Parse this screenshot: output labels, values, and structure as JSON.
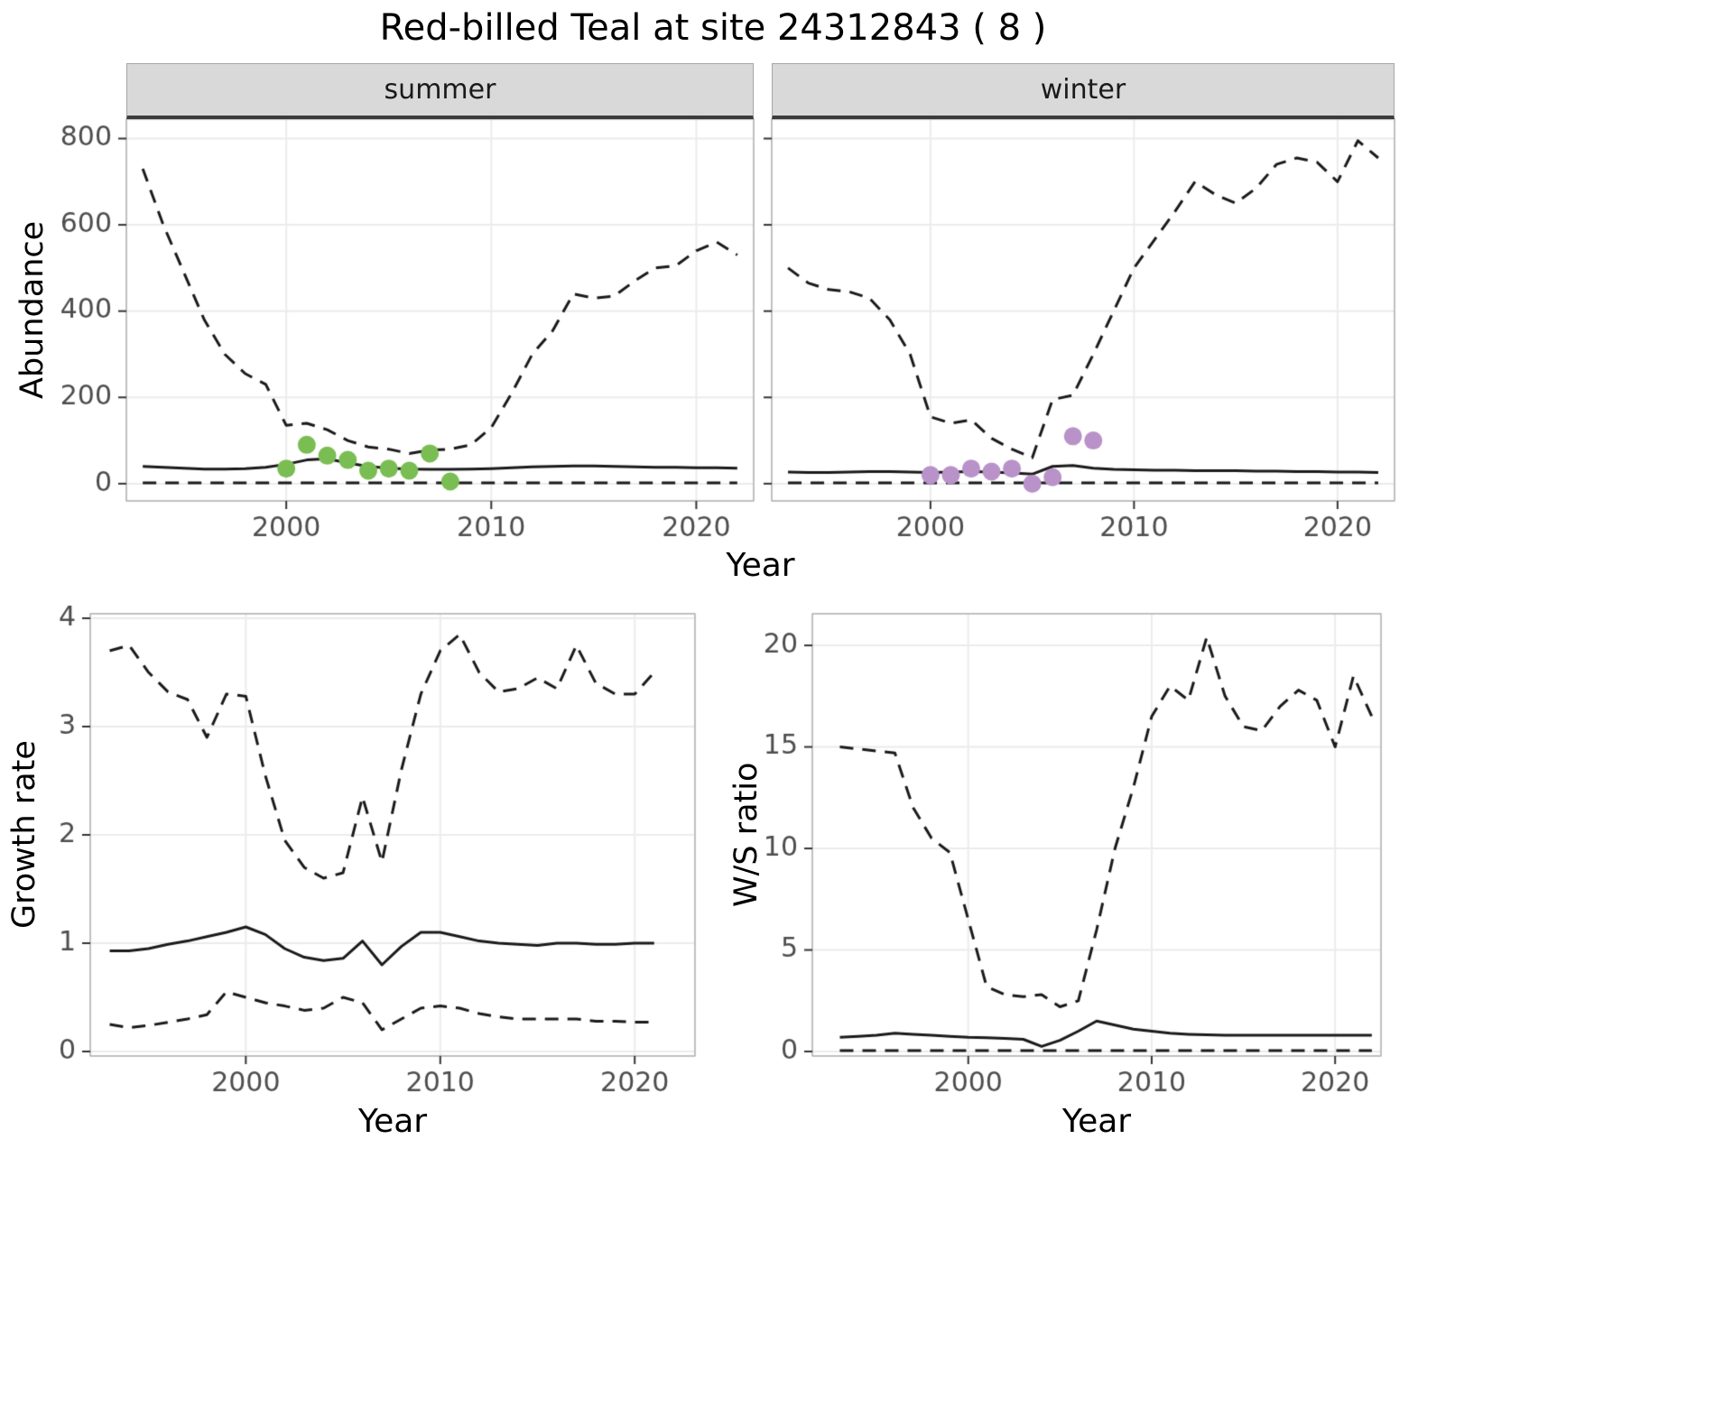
{
  "title": "Red-billed Teal at site 24312843 ( 8 )",
  "point_colors": {
    "summer": "#7abd53",
    "winter": "#b892c9"
  },
  "line_color": "#1a1a1a",
  "strip_background": "#d9d9d9",
  "chart_data": [
    {
      "id": "abundance_summer",
      "type": "line",
      "facet_label": "summer",
      "ylabel": "Abundance",
      "xlabel": "Year",
      "xlim": [
        1992.2,
        2022.8
      ],
      "ylim": [
        -40,
        845
      ],
      "xticks": [
        2000,
        2010,
        2020
      ],
      "yticks": [
        0,
        200,
        400,
        600,
        800
      ],
      "grid": true,
      "legend": "none",
      "x": [
        1993,
        1994,
        1995,
        1996,
        1997,
        1998,
        1999,
        2000,
        2001,
        2002,
        2003,
        2004,
        2005,
        2006,
        2007,
        2008,
        2009,
        2010,
        2011,
        2012,
        2013,
        2014,
        2015,
        2016,
        2017,
        2018,
        2019,
        2020,
        2021,
        2022
      ],
      "series": [
        {
          "name": "upper_ci",
          "style": "dashed",
          "values": [
            730,
            600,
            490,
            380,
            300,
            255,
            230,
            135,
            140,
            125,
            100,
            85,
            80,
            70,
            78,
            80,
            90,
            130,
            210,
            300,
            355,
            440,
            430,
            435,
            470,
            500,
            505,
            540,
            560,
            530
          ]
        },
        {
          "name": "median",
          "style": "solid",
          "values": [
            40,
            38,
            36,
            34,
            34,
            35,
            38,
            45,
            55,
            58,
            48,
            40,
            36,
            34,
            33,
            33,
            34,
            35,
            37,
            39,
            40,
            41,
            41,
            40,
            39,
            38,
            38,
            37,
            37,
            36
          ]
        },
        {
          "name": "lower_ci",
          "style": "dashed",
          "values": [
            2,
            2,
            2,
            2,
            2,
            2,
            2,
            2,
            2,
            2,
            2,
            2,
            2,
            2,
            2,
            2,
            2,
            2,
            2,
            2,
            2,
            2,
            2,
            2,
            2,
            2,
            2,
            2,
            2,
            2
          ]
        }
      ],
      "points": {
        "name": "observed_counts",
        "color": "#7abd53",
        "x": [
          2000,
          2001,
          2002,
          2003,
          2004,
          2005,
          2006,
          2007,
          2008
        ],
        "y": [
          35,
          90,
          65,
          55,
          30,
          35,
          30,
          70,
          5
        ]
      }
    },
    {
      "id": "abundance_winter",
      "type": "line",
      "facet_label": "winter",
      "ylabel": "Abundance",
      "xlabel": "Year",
      "xlim": [
        1992.2,
        2022.8
      ],
      "ylim": [
        -40,
        845
      ],
      "xticks": [
        2000,
        2010,
        2020
      ],
      "yticks": [
        0,
        200,
        400,
        600,
        800
      ],
      "grid": true,
      "legend": "none",
      "x": [
        1993,
        1994,
        1995,
        1996,
        1997,
        1998,
        1999,
        2000,
        2001,
        2002,
        2003,
        2004,
        2005,
        2006,
        2007,
        2008,
        2009,
        2010,
        2011,
        2012,
        2013,
        2014,
        2015,
        2016,
        2017,
        2018,
        2019,
        2020,
        2021,
        2022
      ],
      "series": [
        {
          "name": "upper_ci",
          "style": "dashed",
          "values": [
            500,
            465,
            450,
            445,
            430,
            380,
            300,
            155,
            140,
            148,
            105,
            80,
            60,
            195,
            205,
            300,
            400,
            500,
            565,
            630,
            700,
            670,
            650,
            685,
            740,
            755,
            745,
            700,
            795,
            755
          ]
        },
        {
          "name": "median",
          "style": "solid",
          "values": [
            27,
            26,
            26,
            27,
            28,
            28,
            27,
            26,
            27,
            28,
            27,
            25,
            22,
            40,
            42,
            36,
            33,
            32,
            31,
            31,
            30,
            30,
            30,
            29,
            29,
            28,
            28,
            27,
            27,
            26
          ]
        },
        {
          "name": "lower_ci",
          "style": "dashed",
          "values": [
            2,
            2,
            2,
            2,
            2,
            2,
            2,
            2,
            2,
            2,
            2,
            2,
            2,
            2,
            2,
            2,
            2,
            2,
            2,
            2,
            2,
            2,
            2,
            2,
            2,
            2,
            2,
            2,
            2,
            2
          ]
        }
      ],
      "points": {
        "name": "observed_counts",
        "color": "#b892c9",
        "x": [
          2000,
          2001,
          2002,
          2003,
          2004,
          2005,
          2006,
          2007,
          2008
        ],
        "y": [
          20,
          20,
          35,
          28,
          35,
          0,
          15,
          110,
          100
        ]
      }
    },
    {
      "id": "growth_rate",
      "type": "line",
      "facet_label": "",
      "ylabel": "Growth rate",
      "xlabel": "Year",
      "xlim": [
        1992,
        2023.1
      ],
      "ylim": [
        -0.0417,
        4.0417
      ],
      "xticks": [
        2000,
        2010,
        2020
      ],
      "yticks": [
        0,
        1,
        2,
        3,
        4
      ],
      "grid": true,
      "legend": "none",
      "x": [
        1993,
        1994,
        1995,
        1996,
        1997,
        1998,
        1999,
        2000,
        2001,
        2002,
        2003,
        2004,
        2005,
        2006,
        2007,
        2008,
        2009,
        2010,
        2011,
        2012,
        2013,
        2014,
        2015,
        2016,
        2017,
        2018,
        2019,
        2020,
        2021
      ],
      "series": [
        {
          "name": "upper_ci",
          "style": "dashed",
          "values": [
            3.7,
            3.75,
            3.5,
            3.32,
            3.25,
            2.9,
            3.3,
            3.28,
            2.55,
            1.95,
            1.7,
            1.6,
            1.65,
            2.35,
            1.75,
            2.6,
            3.3,
            3.7,
            3.85,
            3.5,
            3.32,
            3.35,
            3.45,
            3.35,
            3.75,
            3.4,
            3.3,
            3.3,
            3.5
          ]
        },
        {
          "name": "median",
          "style": "solid",
          "values": [
            0.93,
            0.93,
            0.95,
            0.99,
            1.02,
            1.06,
            1.1,
            1.15,
            1.08,
            0.95,
            0.87,
            0.84,
            0.86,
            1.02,
            0.8,
            0.97,
            1.1,
            1.1,
            1.06,
            1.02,
            1.0,
            0.99,
            0.98,
            1.0,
            1.0,
            0.99,
            0.99,
            1.0,
            1.0
          ]
        },
        {
          "name": "lower_ci",
          "style": "dashed",
          "values": [
            0.25,
            0.22,
            0.24,
            0.27,
            0.3,
            0.34,
            0.55,
            0.5,
            0.45,
            0.42,
            0.38,
            0.4,
            0.5,
            0.45,
            0.2,
            0.3,
            0.4,
            0.42,
            0.4,
            0.35,
            0.32,
            0.3,
            0.3,
            0.3,
            0.3,
            0.28,
            0.28,
            0.27,
            0.27
          ]
        }
      ]
    },
    {
      "id": "ws_ratio",
      "type": "line",
      "facet_label": "",
      "ylabel": "W/S ratio",
      "xlabel": "Year",
      "xlim": [
        1991.5,
        2022.5
      ],
      "ylim": [
        -0.222,
        21.56
      ],
      "xticks": [
        2000,
        2010,
        2020
      ],
      "yticks": [
        0,
        5,
        10,
        15,
        20
      ],
      "grid": true,
      "legend": "none",
      "x": [
        1993,
        1994,
        1995,
        1996,
        1997,
        1998,
        1999,
        2000,
        2001,
        2002,
        2003,
        2004,
        2005,
        2006,
        2007,
        2008,
        2009,
        2010,
        2011,
        2012,
        2013,
        2014,
        2015,
        2016,
        2017,
        2018,
        2019,
        2020,
        2021,
        2022
      ],
      "series": [
        {
          "name": "upper_ci",
          "style": "dashed",
          "values": [
            15.0,
            14.9,
            14.8,
            14.7,
            12.0,
            10.5,
            9.8,
            6.5,
            3.2,
            2.8,
            2.7,
            2.8,
            2.2,
            2.5,
            6.0,
            10.0,
            13.0,
            16.5,
            18.0,
            17.3,
            20.4,
            17.5,
            16.0,
            15.8,
            17.0,
            17.8,
            17.3,
            15.0,
            18.5,
            16.5
          ]
        },
        {
          "name": "median",
          "style": "solid",
          "values": [
            0.7,
            0.75,
            0.8,
            0.9,
            0.85,
            0.8,
            0.75,
            0.7,
            0.68,
            0.65,
            0.6,
            0.25,
            0.55,
            1.0,
            1.5,
            1.3,
            1.1,
            1.0,
            0.9,
            0.85,
            0.82,
            0.8,
            0.8,
            0.8,
            0.8,
            0.8,
            0.8,
            0.8,
            0.8,
            0.8
          ]
        },
        {
          "name": "lower_ci",
          "style": "dashed",
          "values": [
            0.05,
            0.05,
            0.05,
            0.05,
            0.05,
            0.05,
            0.05,
            0.05,
            0.05,
            0.05,
            0.05,
            0.05,
            0.05,
            0.05,
            0.05,
            0.05,
            0.05,
            0.05,
            0.05,
            0.05,
            0.05,
            0.05,
            0.05,
            0.05,
            0.05,
            0.05,
            0.05,
            0.05,
            0.05,
            0.05
          ]
        }
      ]
    }
  ]
}
